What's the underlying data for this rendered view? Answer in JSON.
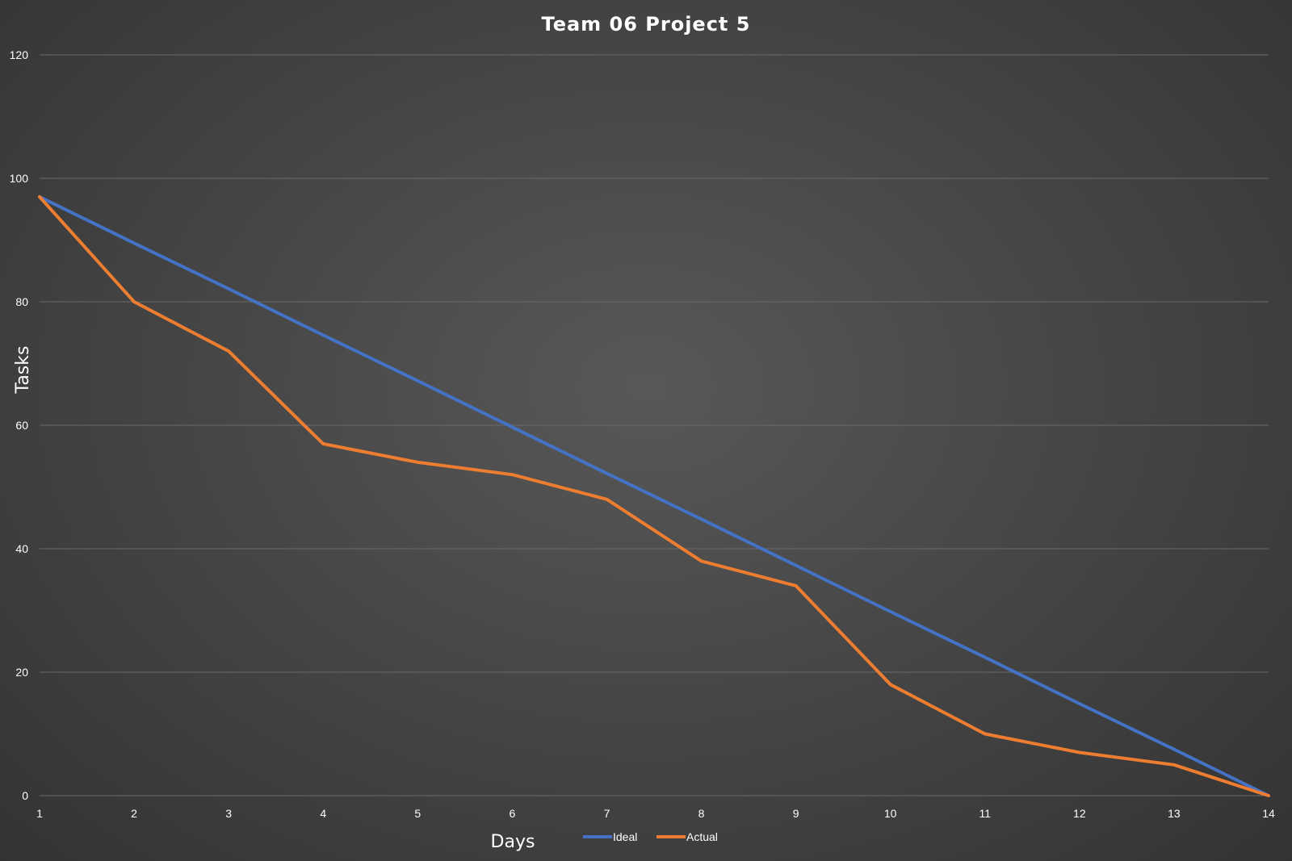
{
  "chart_data": {
    "type": "line",
    "title": "Team 06 Project 5",
    "xlabel": "Days",
    "ylabel": "Tasks",
    "x": [
      1,
      2,
      3,
      4,
      5,
      6,
      7,
      8,
      9,
      10,
      11,
      12,
      13,
      14
    ],
    "series": [
      {
        "name": "Ideal",
        "color": "#4472c4",
        "values": [
          97,
          89.5,
          82.1,
          74.6,
          67.2,
          59.7,
          52.2,
          44.8,
          37.3,
          29.8,
          22.4,
          14.9,
          7.5,
          0
        ]
      },
      {
        "name": "Actual",
        "color": "#ed7d31",
        "values": [
          97,
          80,
          72,
          57,
          54,
          52,
          48,
          38,
          34,
          18,
          10,
          7,
          5,
          0
        ]
      }
    ],
    "xlim": [
      1,
      14
    ],
    "ylim": [
      0,
      120
    ],
    "yticks": [
      0,
      20,
      40,
      60,
      80,
      100,
      120
    ],
    "grid": true,
    "legend_position": "bottom"
  }
}
